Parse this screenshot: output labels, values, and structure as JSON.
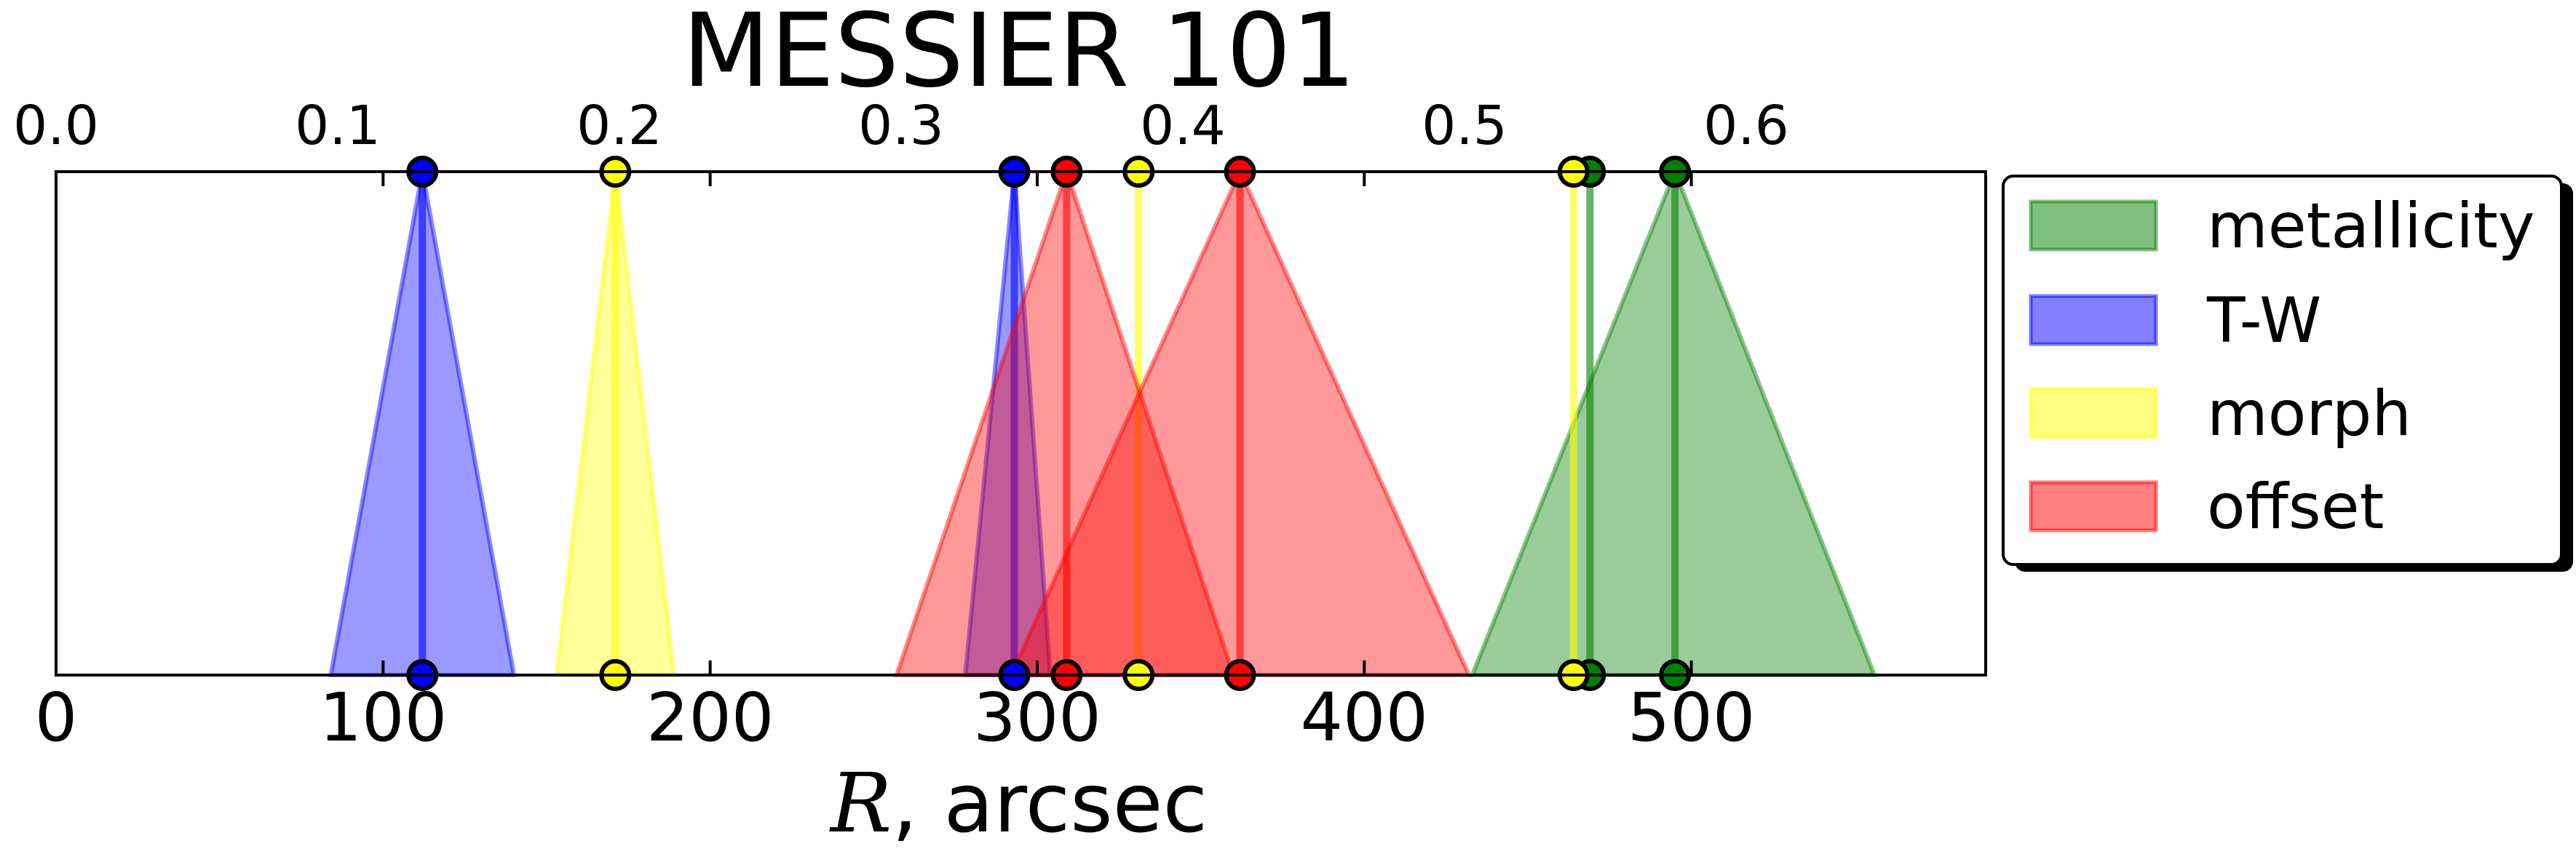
{
  "chart_data": {
    "type": "area",
    "title": "MESSIER 101",
    "xlabel_italic": "R",
    "xlabel_rest": ", arcsec",
    "x_bottom": {
      "lim": [
        0,
        590
      ],
      "ticks": [
        0,
        100,
        200,
        300,
        400,
        500
      ],
      "tick_labels": [
        "0",
        "100",
        "200",
        "300",
        "400",
        "500"
      ]
    },
    "x_top": {
      "lim": [
        0,
        0.685
      ],
      "ticks": [
        0.0,
        0.1,
        0.2,
        0.3,
        0.4,
        0.5,
        0.6
      ],
      "tick_labels": [
        "0.0",
        "0.1",
        "0.2",
        "0.3",
        "0.4",
        "0.5",
        "0.6"
      ]
    },
    "legend": {
      "position": "outside-right",
      "entries": [
        {
          "label": "metallicity",
          "color": "#008000"
        },
        {
          "label": "T-W",
          "color": "#0000ff"
        },
        {
          "label": "morph",
          "color": "#ffff00"
        },
        {
          "label": "offset",
          "color": "#ff0000"
        }
      ]
    },
    "series": [
      {
        "name": "metallicity",
        "color": "#008000",
        "estimates": [
          {
            "value": 469,
            "low": 469,
            "high": 469
          },
          {
            "value": 495,
            "low": 433,
            "high": 556
          }
        ]
      },
      {
        "name": "T-W",
        "color": "#0000ff",
        "estimates": [
          {
            "value": 112,
            "low": 84,
            "high": 140
          },
          {
            "value": 293,
            "low": 278,
            "high": 304
          }
        ]
      },
      {
        "name": "morph",
        "color": "#ffff00",
        "estimates": [
          {
            "value": 171,
            "low": 153,
            "high": 189
          },
          {
            "value": 331,
            "low": 331,
            "high": 331
          },
          {
            "value": 464,
            "low": 464,
            "high": 464
          }
        ]
      },
      {
        "name": "offset",
        "color": "#ff0000",
        "estimates": [
          {
            "value": 309,
            "low": 257,
            "high": 360
          },
          {
            "value": 362,
            "low": 292,
            "high": 432
          }
        ]
      }
    ]
  }
}
